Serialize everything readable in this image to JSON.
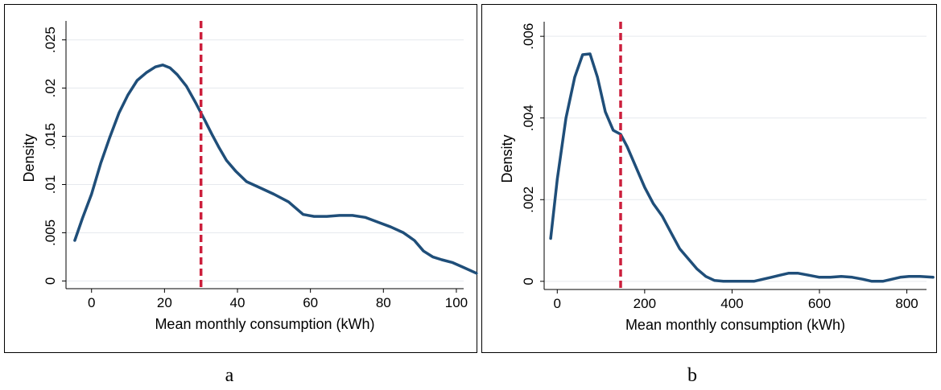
{
  "chart_data": [
    {
      "type": "line",
      "panel_label": "a",
      "xlabel": "Mean monthly consumption (kWh)",
      "ylabel": "Density",
      "xlim": [
        -7,
        102
      ],
      "ylim": [
        -0.0008,
        0.0263
      ],
      "xticks": [
        0,
        20,
        40,
        60,
        80,
        100
      ],
      "xtick_labels": [
        "0",
        "20",
        "40",
        "60",
        "80",
        "100"
      ],
      "yticks": [
        0,
        0.005,
        0.01,
        0.015,
        0.02,
        0.025
      ],
      "ytick_labels": [
        "0",
        ".005",
        ".01",
        ".015",
        ".02",
        ".025"
      ],
      "grid": true,
      "reference_line": {
        "x": 30,
        "color": "#cc1f3c",
        "style": "dashed"
      },
      "series": [
        {
          "color": "#1f4e79",
          "points": [
            [
              -4.6,
              0.0042
            ],
            [
              -2.5,
              0.0065
            ],
            [
              0,
              0.009
            ],
            [
              2.5,
              0.0122
            ],
            [
              5,
              0.0149
            ],
            [
              7.5,
              0.0174
            ],
            [
              10,
              0.0193
            ],
            [
              12.5,
              0.0208
            ],
            [
              15,
              0.0216
            ],
            [
              17.5,
              0.0222
            ],
            [
              19.5,
              0.0224
            ],
            [
              21.5,
              0.0221
            ],
            [
              23.5,
              0.0214
            ],
            [
              26,
              0.0202
            ],
            [
              28.5,
              0.0185
            ],
            [
              31,
              0.0167
            ],
            [
              33,
              0.0152
            ],
            [
              35,
              0.0138
            ],
            [
              37,
              0.0125
            ],
            [
              39.5,
              0.0114
            ],
            [
              42.5,
              0.0103
            ],
            [
              46,
              0.0097
            ],
            [
              50,
              0.009
            ],
            [
              54,
              0.0082
            ],
            [
              58,
              0.0069
            ],
            [
              61,
              0.0067
            ],
            [
              64.5,
              0.0067
            ],
            [
              68,
              0.0068
            ],
            [
              71.5,
              0.0068
            ],
            [
              75,
              0.0066
            ],
            [
              78.5,
              0.0061
            ],
            [
              82,
              0.0056
            ],
            [
              85.5,
              0.005
            ],
            [
              88.5,
              0.0042
            ],
            [
              91,
              0.0031
            ],
            [
              93.5,
              0.0025
            ],
            [
              96,
              0.0022
            ],
            [
              99,
              0.0019
            ],
            [
              102,
              0.0014
            ],
            [
              105.5,
              0.0008
            ]
          ]
        }
      ]
    },
    {
      "type": "line",
      "panel_label": "b",
      "xlabel": "Mean monthly consumption (kWh)",
      "ylabel": "Density",
      "xlim": [
        -30,
        845
      ],
      "ylim": [
        -0.0002,
        0.0062
      ],
      "xticks": [
        0,
        200,
        400,
        600,
        800
      ],
      "xtick_labels": [
        "0",
        "200",
        "400",
        "600",
        "800"
      ],
      "yticks": [
        0,
        0.002,
        0.004,
        0.006
      ],
      "ytick_labels": [
        "0",
        ".002",
        ".004",
        ".006"
      ],
      "grid": true,
      "reference_line": {
        "x": 145,
        "color": "#cc1f3c",
        "style": "dashed"
      },
      "series": [
        {
          "color": "#1f4e79",
          "points": [
            [
              -15,
              0.00105
            ],
            [
              0,
              0.0025
            ],
            [
              20,
              0.004
            ],
            [
              40,
              0.005
            ],
            [
              58,
              0.00555
            ],
            [
              75,
              0.00557
            ],
            [
              92,
              0.005
            ],
            [
              110,
              0.00415
            ],
            [
              128,
              0.0037
            ],
            [
              145,
              0.0036
            ],
            [
              160,
              0.0033
            ],
            [
              180,
              0.0028
            ],
            [
              200,
              0.0023
            ],
            [
              220,
              0.0019
            ],
            [
              240,
              0.0016
            ],
            [
              260,
              0.0012
            ],
            [
              280,
              0.0008
            ],
            [
              300,
              0.00055
            ],
            [
              320,
              0.0003
            ],
            [
              340,
              0.00012
            ],
            [
              360,
              2e-05
            ],
            [
              380,
              0.0
            ],
            [
              420,
              0.0
            ],
            [
              450,
              0.0
            ],
            [
              470,
              5e-05
            ],
            [
              490,
              0.0001
            ],
            [
              510,
              0.00015
            ],
            [
              530,
              0.0002
            ],
            [
              550,
              0.0002
            ],
            [
              575,
              0.00015
            ],
            [
              600,
              0.0001
            ],
            [
              625,
              0.0001
            ],
            [
              650,
              0.00012
            ],
            [
              675,
              0.0001
            ],
            [
              700,
              5e-05
            ],
            [
              720,
              0.0
            ],
            [
              745,
              0.0
            ],
            [
              765,
              5e-05
            ],
            [
              785,
              0.0001
            ],
            [
              805,
              0.00012
            ],
            [
              830,
              0.00012
            ],
            [
              860,
              0.0001
            ]
          ]
        }
      ]
    }
  ]
}
